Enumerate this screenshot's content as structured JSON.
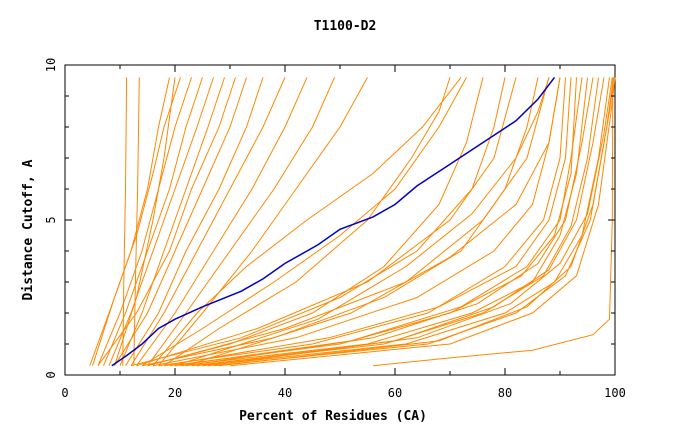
{
  "chart_data": {
    "type": "line",
    "title": "T1100-D2",
    "xlabel": "Percent of Residues (CA)",
    "ylabel": "Distance Cutoff, A",
    "xlim": [
      0,
      100
    ],
    "ylim": [
      0,
      10
    ],
    "x_ticks": [
      "0",
      "20",
      "40",
      "60",
      "80",
      "100"
    ],
    "y_ticks": [
      "0",
      "5",
      "10"
    ],
    "grid": false,
    "colors": {
      "highlight": "#0000cc",
      "others": "#ff8800"
    },
    "highlight_series": {
      "name": "",
      "points": [
        [
          8.5,
          0.3
        ],
        [
          11,
          0.6
        ],
        [
          14,
          1.0
        ],
        [
          17,
          1.5
        ],
        [
          20,
          1.8
        ],
        [
          25,
          2.2
        ],
        [
          32,
          2.7
        ],
        [
          36,
          3.1
        ],
        [
          40,
          3.6
        ],
        [
          46,
          4.2
        ],
        [
          50,
          4.7
        ],
        [
          56,
          5.1
        ],
        [
          60,
          5.5
        ],
        [
          64,
          6.1
        ],
        [
          70,
          6.8
        ],
        [
          76,
          7.5
        ],
        [
          82,
          8.2
        ],
        [
          86,
          8.9
        ],
        [
          89,
          9.6
        ]
      ]
    },
    "series": [
      {
        "points": [
          [
            10.5,
            0.3
          ],
          [
            10.7,
            3
          ],
          [
            11,
            6
          ],
          [
            11.2,
            9.6
          ]
        ]
      },
      {
        "points": [
          [
            12.5,
            0.3
          ],
          [
            12.8,
            3
          ],
          [
            13.2,
            6
          ],
          [
            13.5,
            9.6
          ]
        ]
      },
      {
        "points": [
          [
            4.5,
            0.3
          ],
          [
            8,
            2
          ],
          [
            12,
            4
          ],
          [
            15,
            6
          ],
          [
            17,
            8
          ],
          [
            19,
            9.6
          ]
        ]
      },
      {
        "points": [
          [
            5,
            0.3
          ],
          [
            9,
            2.5
          ],
          [
            13,
            4.5
          ],
          [
            16,
            6.5
          ],
          [
            18,
            8
          ],
          [
            21,
            9.6
          ]
        ]
      },
      {
        "points": [
          [
            6,
            0.3
          ],
          [
            10,
            2
          ],
          [
            14,
            4
          ],
          [
            17,
            6
          ],
          [
            20,
            8
          ],
          [
            23,
            9.6
          ]
        ]
      },
      {
        "points": [
          [
            7,
            0.3
          ],
          [
            11,
            2
          ],
          [
            15,
            4
          ],
          [
            19,
            6
          ],
          [
            22,
            8
          ],
          [
            25,
            9.6
          ]
        ]
      },
      {
        "points": [
          [
            9,
            0.3
          ],
          [
            13,
            2.5
          ],
          [
            16,
            5
          ],
          [
            18,
            7
          ],
          [
            20,
            9.6
          ]
        ]
      },
      {
        "points": [
          [
            8,
            0.3
          ],
          [
            12,
            2
          ],
          [
            16,
            4
          ],
          [
            20,
            6
          ],
          [
            24,
            8
          ],
          [
            27,
            9.6
          ]
        ]
      },
      {
        "points": [
          [
            10,
            0.3
          ],
          [
            14,
            2
          ],
          [
            18,
            4
          ],
          [
            22,
            6
          ],
          [
            26,
            8
          ],
          [
            29,
            9.6
          ]
        ]
      },
      {
        "points": [
          [
            6,
            0.3
          ],
          [
            13,
            2
          ],
          [
            19,
            4
          ],
          [
            23,
            6
          ],
          [
            28,
            8
          ],
          [
            31,
            9.6
          ]
        ]
      },
      {
        "points": [
          [
            9,
            0.3
          ],
          [
            15,
            2
          ],
          [
            20,
            4
          ],
          [
            25,
            6
          ],
          [
            30,
            8
          ],
          [
            33,
            9.6
          ]
        ]
      },
      {
        "points": [
          [
            11,
            0.3
          ],
          [
            17,
            2
          ],
          [
            22,
            4
          ],
          [
            28,
            6
          ],
          [
            33,
            8
          ],
          [
            36,
            9.6
          ]
        ]
      },
      {
        "points": [
          [
            12,
            0.3
          ],
          [
            18,
            2
          ],
          [
            24,
            4
          ],
          [
            30,
            6
          ],
          [
            36,
            8
          ],
          [
            40,
            9.6
          ]
        ]
      },
      {
        "points": [
          [
            13,
            0.3
          ],
          [
            20,
            2
          ],
          [
            27,
            4
          ],
          [
            34,
            6
          ],
          [
            40,
            8
          ],
          [
            44,
            9.6
          ]
        ]
      },
      {
        "points": [
          [
            15,
            0.3
          ],
          [
            22,
            2
          ],
          [
            30,
            4
          ],
          [
            38,
            6
          ],
          [
            45,
            8
          ],
          [
            49,
            9.6
          ]
        ]
      },
      {
        "points": [
          [
            17,
            0.3
          ],
          [
            25,
            2
          ],
          [
            34,
            4
          ],
          [
            42,
            6
          ],
          [
            50,
            8
          ],
          [
            55,
            9.6
          ]
        ]
      },
      {
        "points": [
          [
            16,
            0.3
          ],
          [
            24,
            2
          ],
          [
            33,
            3.5
          ],
          [
            44,
            5
          ],
          [
            56,
            6.5
          ],
          [
            65,
            8
          ],
          [
            72,
            9.6
          ]
        ]
      },
      {
        "points": [
          [
            14,
            0.3
          ],
          [
            25,
            1.5
          ],
          [
            38,
            3
          ],
          [
            50,
            4.5
          ],
          [
            60,
            6
          ],
          [
            68,
            8
          ],
          [
            73,
            9.6
          ]
        ]
      },
      {
        "points": [
          [
            18,
            0.3
          ],
          [
            28,
            1.5
          ],
          [
            42,
            3
          ],
          [
            55,
            5
          ],
          [
            63,
            7
          ],
          [
            68,
            8.5
          ],
          [
            70,
            9.6
          ]
        ]
      },
      {
        "points": [
          [
            15,
            0.3
          ],
          [
            30,
            1
          ],
          [
            45,
            2
          ],
          [
            58,
            3.5
          ],
          [
            68,
            5.5
          ],
          [
            73,
            7.5
          ],
          [
            76,
            9.6
          ]
        ]
      },
      {
        "points": [
          [
            12,
            0.3
          ],
          [
            32,
            1.2
          ],
          [
            50,
            2.5
          ],
          [
            64,
            4
          ],
          [
            74,
            6
          ],
          [
            78,
            8
          ],
          [
            80,
            9.6
          ]
        ]
      },
      {
        "points": [
          [
            13,
            0.3
          ],
          [
            35,
            1.5
          ],
          [
            55,
            3
          ],
          [
            70,
            5
          ],
          [
            78,
            7
          ],
          [
            82,
            9.6
          ]
        ]
      },
      {
        "points": [
          [
            14,
            0.3
          ],
          [
            38,
            1.2
          ],
          [
            58,
            2.5
          ],
          [
            72,
            4
          ],
          [
            80,
            6
          ],
          [
            84,
            8
          ],
          [
            86,
            9.6
          ]
        ]
      },
      {
        "points": [
          [
            15,
            0.3
          ],
          [
            40,
            1.5
          ],
          [
            62,
            3
          ],
          [
            76,
            5
          ],
          [
            84,
            7
          ],
          [
            88,
            9.6
          ]
        ]
      },
      {
        "points": [
          [
            16,
            0.3
          ],
          [
            42,
            1.2
          ],
          [
            64,
            2.5
          ],
          [
            78,
            4
          ],
          [
            85,
            5.5
          ],
          [
            88,
            7.5
          ],
          [
            90,
            9.6
          ]
        ]
      },
      {
        "points": [
          [
            17,
            0.3
          ],
          [
            45,
            1
          ],
          [
            66,
            2
          ],
          [
            80,
            3.5
          ],
          [
            87,
            5
          ],
          [
            90,
            7
          ],
          [
            91,
            9.6
          ]
        ]
      },
      {
        "points": [
          [
            18,
            0.3
          ],
          [
            48,
            1.2
          ],
          [
            68,
            2.2
          ],
          [
            82,
            3.5
          ],
          [
            88,
            5
          ],
          [
            91,
            7
          ],
          [
            92,
            9.6
          ]
        ]
      },
      {
        "points": [
          [
            19,
            0.3
          ],
          [
            50,
            1
          ],
          [
            70,
            2
          ],
          [
            83,
            3.2
          ],
          [
            89,
            4.5
          ],
          [
            92,
            6.5
          ],
          [
            93,
            9.6
          ]
        ]
      },
      {
        "points": [
          [
            20,
            0.3
          ],
          [
            52,
            1.1
          ],
          [
            72,
            2.2
          ],
          [
            84,
            3.5
          ],
          [
            90,
            5
          ],
          [
            92,
            7
          ],
          [
            94,
            9.6
          ]
        ]
      },
      {
        "points": [
          [
            21,
            0.3
          ],
          [
            55,
            1
          ],
          [
            74,
            2
          ],
          [
            85,
            3
          ],
          [
            90,
            4.5
          ],
          [
            93,
            6.5
          ],
          [
            95,
            9.6
          ]
        ]
      },
      {
        "points": [
          [
            22,
            0.3
          ],
          [
            56,
            1.2
          ],
          [
            75,
            2.3
          ],
          [
            86,
            3.6
          ],
          [
            91,
            5
          ],
          [
            94,
            7.5
          ],
          [
            96,
            9.6
          ]
        ]
      },
      {
        "points": [
          [
            23,
            0.3
          ],
          [
            58,
            1
          ],
          [
            76,
            2
          ],
          [
            87,
            3.2
          ],
          [
            92,
            4.8
          ],
          [
            95,
            7
          ],
          [
            97,
            9.6
          ]
        ]
      },
      {
        "points": [
          [
            24,
            0.3
          ],
          [
            60,
            1.1
          ],
          [
            78,
            2.2
          ],
          [
            88,
            3.4
          ],
          [
            93,
            5
          ],
          [
            96,
            7.5
          ],
          [
            98,
            9.6
          ]
        ]
      },
      {
        "points": [
          [
            25,
            0.3
          ],
          [
            62,
            1
          ],
          [
            80,
            2
          ],
          [
            89,
            3
          ],
          [
            94,
            4.5
          ],
          [
            97,
            7
          ],
          [
            99,
            9.6
          ]
        ]
      },
      {
        "points": [
          [
            26,
            0.3
          ],
          [
            64,
            1.2
          ],
          [
            81,
            2.3
          ],
          [
            90,
            3.6
          ],
          [
            95,
            5.2
          ],
          [
            98,
            7.8
          ],
          [
            99.5,
            9.6
          ]
        ]
      },
      {
        "points": [
          [
            27,
            0.3
          ],
          [
            66,
            1
          ],
          [
            82,
            2
          ],
          [
            91,
            3.2
          ],
          [
            95.5,
            5
          ],
          [
            98.5,
            8
          ],
          [
            99.7,
            9.6
          ]
        ]
      },
      {
        "points": [
          [
            28,
            0.3
          ],
          [
            68,
            1.1
          ],
          [
            84,
            2.2
          ],
          [
            92,
            3.5
          ],
          [
            96,
            5.5
          ],
          [
            99,
            8.5
          ],
          [
            99.8,
            9.6
          ]
        ]
      },
      {
        "points": [
          [
            30,
            0.3
          ],
          [
            70,
            1
          ],
          [
            85,
            2
          ],
          [
            93,
            3.2
          ],
          [
            97,
            5.5
          ],
          [
            99.3,
            8.5
          ],
          [
            100,
            9.6
          ]
        ]
      },
      {
        "points": [
          [
            20,
            0.3
          ],
          [
            46,
            1.8
          ],
          [
            62,
            3.5
          ],
          [
            74,
            5.2
          ],
          [
            82,
            7
          ],
          [
            86,
            8.5
          ],
          [
            88,
            9.6
          ]
        ]
      },
      {
        "points": [
          [
            22,
            0.3
          ],
          [
            52,
            2
          ],
          [
            70,
            3.8
          ],
          [
            82,
            5.5
          ],
          [
            88,
            7.5
          ],
          [
            90,
            9.6
          ]
        ]
      },
      {
        "points": [
          [
            56,
            0.3
          ],
          [
            70,
            0.55
          ],
          [
            85,
            0.8
          ],
          [
            96,
            1.3
          ],
          [
            99,
            1.8
          ],
          [
            99.5,
            5
          ],
          [
            99.6,
            9.6
          ]
        ]
      }
    ]
  }
}
